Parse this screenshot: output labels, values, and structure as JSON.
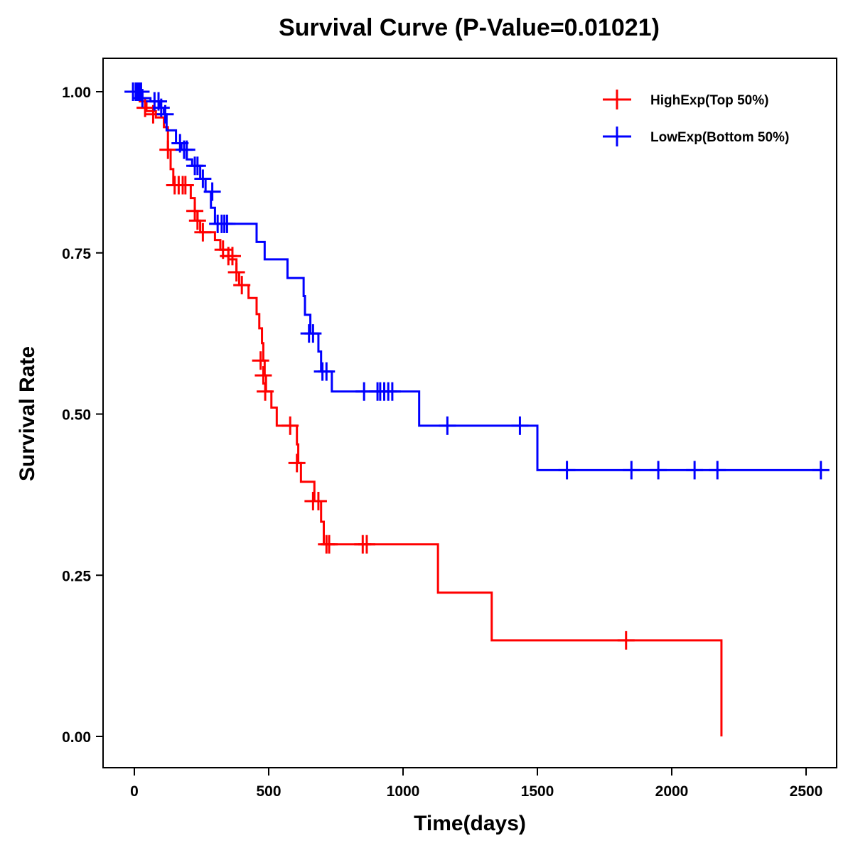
{
  "chart_data": {
    "type": "line",
    "subtype": "kaplan-meier step",
    "title": "Survival Curve (P-Value=0.01021)",
    "xlabel": "Time(days)",
    "ylabel": "Survival Rate",
    "xlim": [
      -100,
      2620
    ],
    "ylim": [
      -0.048,
      1.052
    ],
    "xticks": [
      0,
      500,
      1000,
      1500,
      2000,
      2500
    ],
    "xtick_labels": [
      "0",
      "500",
      "1000",
      "1500",
      "2000",
      "2500"
    ],
    "yticks": [
      0,
      0.25,
      0.5,
      0.75,
      1.0
    ],
    "ytick_labels": [
      "0.00",
      "0.25",
      "0.50",
      "0.75",
      "1.00"
    ],
    "grid": false,
    "legend_position": "top-right",
    "series": [
      {
        "name": "HighExp(Top 50%)",
        "color": "#ff0000",
        "steps": [
          [
            0,
            1.0
          ],
          [
            20,
            0.985
          ],
          [
            45,
            0.97
          ],
          [
            80,
            0.96
          ],
          [
            110,
            0.945
          ],
          [
            125,
            0.91
          ],
          [
            135,
            0.88
          ],
          [
            145,
            0.855
          ],
          [
            210,
            0.835
          ],
          [
            225,
            0.815
          ],
          [
            235,
            0.8
          ],
          [
            245,
            0.782
          ],
          [
            300,
            0.77
          ],
          [
            320,
            0.755
          ],
          [
            350,
            0.74
          ],
          [
            380,
            0.72
          ],
          [
            390,
            0.7
          ],
          [
            425,
            0.68
          ],
          [
            455,
            0.655
          ],
          [
            465,
            0.633
          ],
          [
            475,
            0.61
          ],
          [
            480,
            0.583
          ],
          [
            485,
            0.56
          ],
          [
            490,
            0.535
          ],
          [
            510,
            0.51
          ],
          [
            530,
            0.482
          ],
          [
            605,
            0.453
          ],
          [
            610,
            0.424
          ],
          [
            620,
            0.395
          ],
          [
            670,
            0.365
          ],
          [
            695,
            0.333
          ],
          [
            705,
            0.298
          ],
          [
            1130,
            0.223
          ],
          [
            1330,
            0.149
          ],
          [
            2185,
            0.0
          ]
        ],
        "end_time": 2185,
        "censored": [
          [
            40,
            0.975
          ],
          [
            70,
            0.965
          ],
          [
            125,
            0.91
          ],
          [
            150,
            0.855
          ],
          [
            165,
            0.855
          ],
          [
            180,
            0.855
          ],
          [
            190,
            0.855
          ],
          [
            225,
            0.815
          ],
          [
            235,
            0.8
          ],
          [
            255,
            0.782
          ],
          [
            330,
            0.755
          ],
          [
            350,
            0.745
          ],
          [
            365,
            0.745
          ],
          [
            380,
            0.72
          ],
          [
            400,
            0.7
          ],
          [
            470,
            0.583
          ],
          [
            480,
            0.56
          ],
          [
            487,
            0.535
          ],
          [
            580,
            0.482
          ],
          [
            605,
            0.424
          ],
          [
            665,
            0.365
          ],
          [
            685,
            0.365
          ],
          [
            715,
            0.298
          ],
          [
            725,
            0.298
          ],
          [
            850,
            0.298
          ],
          [
            865,
            0.298
          ],
          [
            1830,
            0.149
          ]
        ]
      },
      {
        "name": "LowExp(Bottom 50%)",
        "color": "#0000ff",
        "steps": [
          [
            0,
            1.0
          ],
          [
            30,
            0.99
          ],
          [
            60,
            0.985
          ],
          [
            95,
            0.975
          ],
          [
            110,
            0.965
          ],
          [
            120,
            0.94
          ],
          [
            155,
            0.92
          ],
          [
            175,
            0.91
          ],
          [
            195,
            0.895
          ],
          [
            215,
            0.885
          ],
          [
            245,
            0.865
          ],
          [
            265,
            0.845
          ],
          [
            285,
            0.82
          ],
          [
            300,
            0.795
          ],
          [
            455,
            0.767
          ],
          [
            485,
            0.74
          ],
          [
            570,
            0.711
          ],
          [
            630,
            0.683
          ],
          [
            635,
            0.654
          ],
          [
            655,
            0.625
          ],
          [
            685,
            0.597
          ],
          [
            695,
            0.566
          ],
          [
            735,
            0.535
          ],
          [
            1060,
            0.482
          ],
          [
            1500,
            0.413
          ]
        ],
        "end_time": 2560,
        "censored": [
          [
            -5,
            1.0
          ],
          [
            5,
            1.0
          ],
          [
            10,
            1.0
          ],
          [
            15,
            1.0
          ],
          [
            20,
            1.0
          ],
          [
            25,
            1.0
          ],
          [
            30,
            0.99
          ],
          [
            75,
            0.985
          ],
          [
            90,
            0.985
          ],
          [
            100,
            0.975
          ],
          [
            115,
            0.965
          ],
          [
            170,
            0.92
          ],
          [
            185,
            0.91
          ],
          [
            195,
            0.91
          ],
          [
            225,
            0.885
          ],
          [
            235,
            0.885
          ],
          [
            255,
            0.865
          ],
          [
            290,
            0.845
          ],
          [
            310,
            0.795
          ],
          [
            325,
            0.795
          ],
          [
            335,
            0.795
          ],
          [
            345,
            0.795
          ],
          [
            650,
            0.625
          ],
          [
            665,
            0.625
          ],
          [
            700,
            0.566
          ],
          [
            715,
            0.566
          ],
          [
            855,
            0.535
          ],
          [
            905,
            0.535
          ],
          [
            915,
            0.535
          ],
          [
            930,
            0.535
          ],
          [
            945,
            0.535
          ],
          [
            960,
            0.535
          ],
          [
            1165,
            0.482
          ],
          [
            1435,
            0.482
          ],
          [
            1610,
            0.413
          ],
          [
            1850,
            0.413
          ],
          [
            1950,
            0.413
          ],
          [
            2085,
            0.413
          ],
          [
            2170,
            0.413
          ],
          [
            2555,
            0.413
          ]
        ]
      }
    ]
  }
}
